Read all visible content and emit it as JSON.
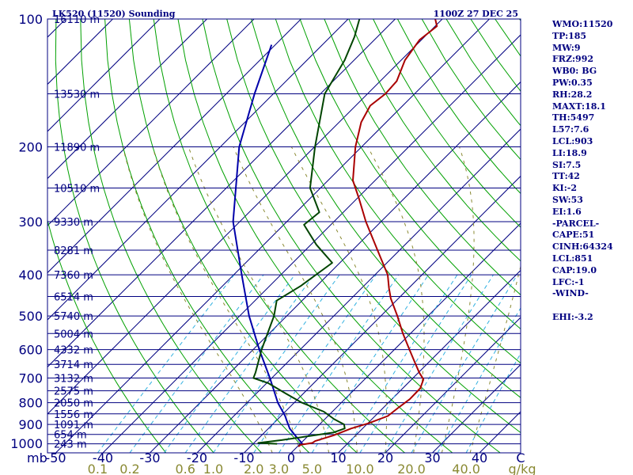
{
  "header": {
    "station_title": "LK520 (11520) Sounding",
    "datetime": "1100Z 27 DEC 25"
  },
  "indices": [
    "WMO:11520",
    "TP:185",
    "MW:9",
    "FRZ:992",
    "WB0: BG",
    "PW:0.35",
    "RH:28.2",
    "MAXT:18.1",
    "TH:5497",
    "L57:7.6",
    "LCL:903",
    "LI:18.9",
    "SI:7.5",
    "TT:42",
    "KI:-2",
    "SW:53",
    "EI:1.6",
    "-PARCEL-",
    "CAPE:51",
    "CINH:64324",
    "LCL:851",
    "CAP:19.0",
    "LFC:-1",
    "-WIND-",
    "",
    "EHI:-3.2"
  ],
  "colors": {
    "frame": "#000080",
    "isobar": "#000080",
    "isotherm": "#000080",
    "dry_adiabat": "#00a000",
    "mixing_ratio": "#30b0e0",
    "moist_adiabat": "#8a8a33",
    "temperature": "#aa0000",
    "dewpoint": "#004400",
    "parcel": "#0000aa"
  },
  "chart_data": {
    "type": "line",
    "title": "LK520 (11520) Sounding",
    "plot": "skew-T log-P",
    "pressure_unit_label": "mb",
    "mixing_ratio_unit_label": "g/kg",
    "pressure_levels": [
      100,
      200,
      300,
      400,
      500,
      600,
      700,
      800,
      900,
      1000
    ],
    "pressure_tick_labels": [
      "100",
      "200",
      "300",
      "400",
      "500",
      "600",
      "700",
      "800",
      "900",
      "1000"
    ],
    "temperature_ticks": [
      -50,
      -40,
      -30,
      -20,
      -10,
      0,
      10,
      20,
      30,
      40
    ],
    "temperature_tick_labels": [
      "-50",
      "-40",
      "-30",
      "-20",
      "-10",
      "0",
      "10",
      "20",
      "30",
      "40"
    ],
    "temperature_tick_trailing_label": "C",
    "mixing_ratio_ticks": [
      0.1,
      0.2,
      0.6,
      1.0,
      2.0,
      3.0,
      5.0,
      10.0,
      20.0,
      40.0
    ],
    "mixing_ratio_tick_labels": [
      "0.1",
      "0.2",
      "0.6",
      "1.0",
      "2.0",
      "3.0",
      "5.0",
      "10.0",
      "20.0",
      "40.0"
    ],
    "height_labels": [
      {
        "p": 100,
        "label": "16110 m"
      },
      {
        "p": 150,
        "label": "13530 m"
      },
      {
        "p": 200,
        "label": "11890 m"
      },
      {
        "p": 250,
        "label": "10510 m"
      },
      {
        "p": 300,
        "label": "9330 m"
      },
      {
        "p": 350,
        "label": "8281 m"
      },
      {
        "p": 400,
        "label": "7360 m"
      },
      {
        "p": 450,
        "label": "6514 m"
      },
      {
        "p": 500,
        "label": "5740 m"
      },
      {
        "p": 550,
        "label": "5004 m"
      },
      {
        "p": 600,
        "label": "4332 m"
      },
      {
        "p": 650,
        "label": "3714 m"
      },
      {
        "p": 700,
        "label": "3132 m"
      },
      {
        "p": 750,
        "label": "2575 m"
      },
      {
        "p": 800,
        "label": "2050 m"
      },
      {
        "p": 850,
        "label": "1556 m"
      },
      {
        "p": 900,
        "label": "1091 m"
      },
      {
        "p": 950,
        "label": "654 m"
      },
      {
        "p": 1000,
        "label": "243 m"
      }
    ],
    "temperature_profile": [
      {
        "p": 1015,
        "t": 0.2
      },
      {
        "p": 1005,
        "t": 0.3
      },
      {
        "p": 995,
        "t": 2.4
      },
      {
        "p": 985,
        "t": 2.6
      },
      {
        "p": 955,
        "t": 5.3
      },
      {
        "p": 920,
        "t": 7.6
      },
      {
        "p": 895,
        "t": 10.1
      },
      {
        "p": 860,
        "t": 12.7
      },
      {
        "p": 820,
        "t": 13.2
      },
      {
        "p": 785,
        "t": 13.8
      },
      {
        "p": 740,
        "t": 13.7
      },
      {
        "p": 705,
        "t": 12.5
      },
      {
        "p": 680,
        "t": 10.2
      },
      {
        "p": 640,
        "t": 6.8
      },
      {
        "p": 600,
        "t": 3.2
      },
      {
        "p": 550,
        "t": -1.6
      },
      {
        "p": 500,
        "t": -6.5
      },
      {
        "p": 455,
        "t": -11.6
      },
      {
        "p": 430,
        "t": -14.2
      },
      {
        "p": 400,
        "t": -17.3
      },
      {
        "p": 350,
        "t": -24.7
      },
      {
        "p": 300,
        "t": -33.2
      },
      {
        "p": 265,
        "t": -39.5
      },
      {
        "p": 240,
        "t": -44.7
      },
      {
        "p": 200,
        "t": -51.3
      },
      {
        "p": 175,
        "t": -55.3
      },
      {
        "p": 160,
        "t": -56.9
      },
      {
        "p": 150,
        "t": -56.2
      },
      {
        "p": 140,
        "t": -56.5
      },
      {
        "p": 125,
        "t": -59.2
      },
      {
        "p": 112,
        "t": -60.4
      },
      {
        "p": 104,
        "t": -59.6
      },
      {
        "p": 100,
        "t": -61.5
      }
    ],
    "dewpoint_profile": [
      {
        "p": 1000,
        "t": -4.9
      },
      {
        "p": 995,
        "t": -9.1
      },
      {
        "p": 980,
        "t": -4.7
      },
      {
        "p": 940,
        "t": 4.7
      },
      {
        "p": 920,
        "t": 6.2
      },
      {
        "p": 900,
        "t": 5.2
      },
      {
        "p": 875,
        "t": 2.0
      },
      {
        "p": 840,
        "t": -1.8
      },
      {
        "p": 800,
        "t": -8.4
      },
      {
        "p": 760,
        "t": -13.9
      },
      {
        "p": 720,
        "t": -19.6
      },
      {
        "p": 700,
        "t": -23.9
      },
      {
        "p": 680,
        "t": -24.6
      },
      {
        "p": 600,
        "t": -28.2
      },
      {
        "p": 500,
        "t": -32.7
      },
      {
        "p": 460,
        "t": -35.4
      },
      {
        "p": 425,
        "t": -33.4
      },
      {
        "p": 375,
        "t": -31.6
      },
      {
        "p": 340,
        "t": -38.8
      },
      {
        "p": 305,
        "t": -45.7
      },
      {
        "p": 285,
        "t": -45.1
      },
      {
        "p": 250,
        "t": -52.2
      },
      {
        "p": 200,
        "t": -59.9
      },
      {
        "p": 150,
        "t": -69.1
      },
      {
        "p": 125,
        "t": -72.0
      },
      {
        "p": 110,
        "t": -74.9
      },
      {
        "p": 100,
        "t": -77.6
      }
    ],
    "parcel_profile": [
      {
        "p": 1005,
        "t": 0.8
      },
      {
        "p": 985,
        "t": -0.6
      },
      {
        "p": 960,
        "t": -2.5
      },
      {
        "p": 920,
        "t": -5.5
      },
      {
        "p": 880,
        "t": -7.9
      },
      {
        "p": 860,
        "t": -9.1
      },
      {
        "p": 800,
        "t": -13.5
      },
      {
        "p": 700,
        "t": -20.4
      },
      {
        "p": 600,
        "t": -28.7
      },
      {
        "p": 500,
        "t": -38.0
      },
      {
        "p": 400,
        "t": -48.3
      },
      {
        "p": 300,
        "t": -61.4
      },
      {
        "p": 200,
        "t": -76.0
      },
      {
        "p": 150,
        "t": -84.0
      },
      {
        "p": 115,
        "t": -90.8
      }
    ],
    "xlim": [
      -50,
      50
    ],
    "ylim": [
      1050,
      100
    ],
    "grid": true
  }
}
